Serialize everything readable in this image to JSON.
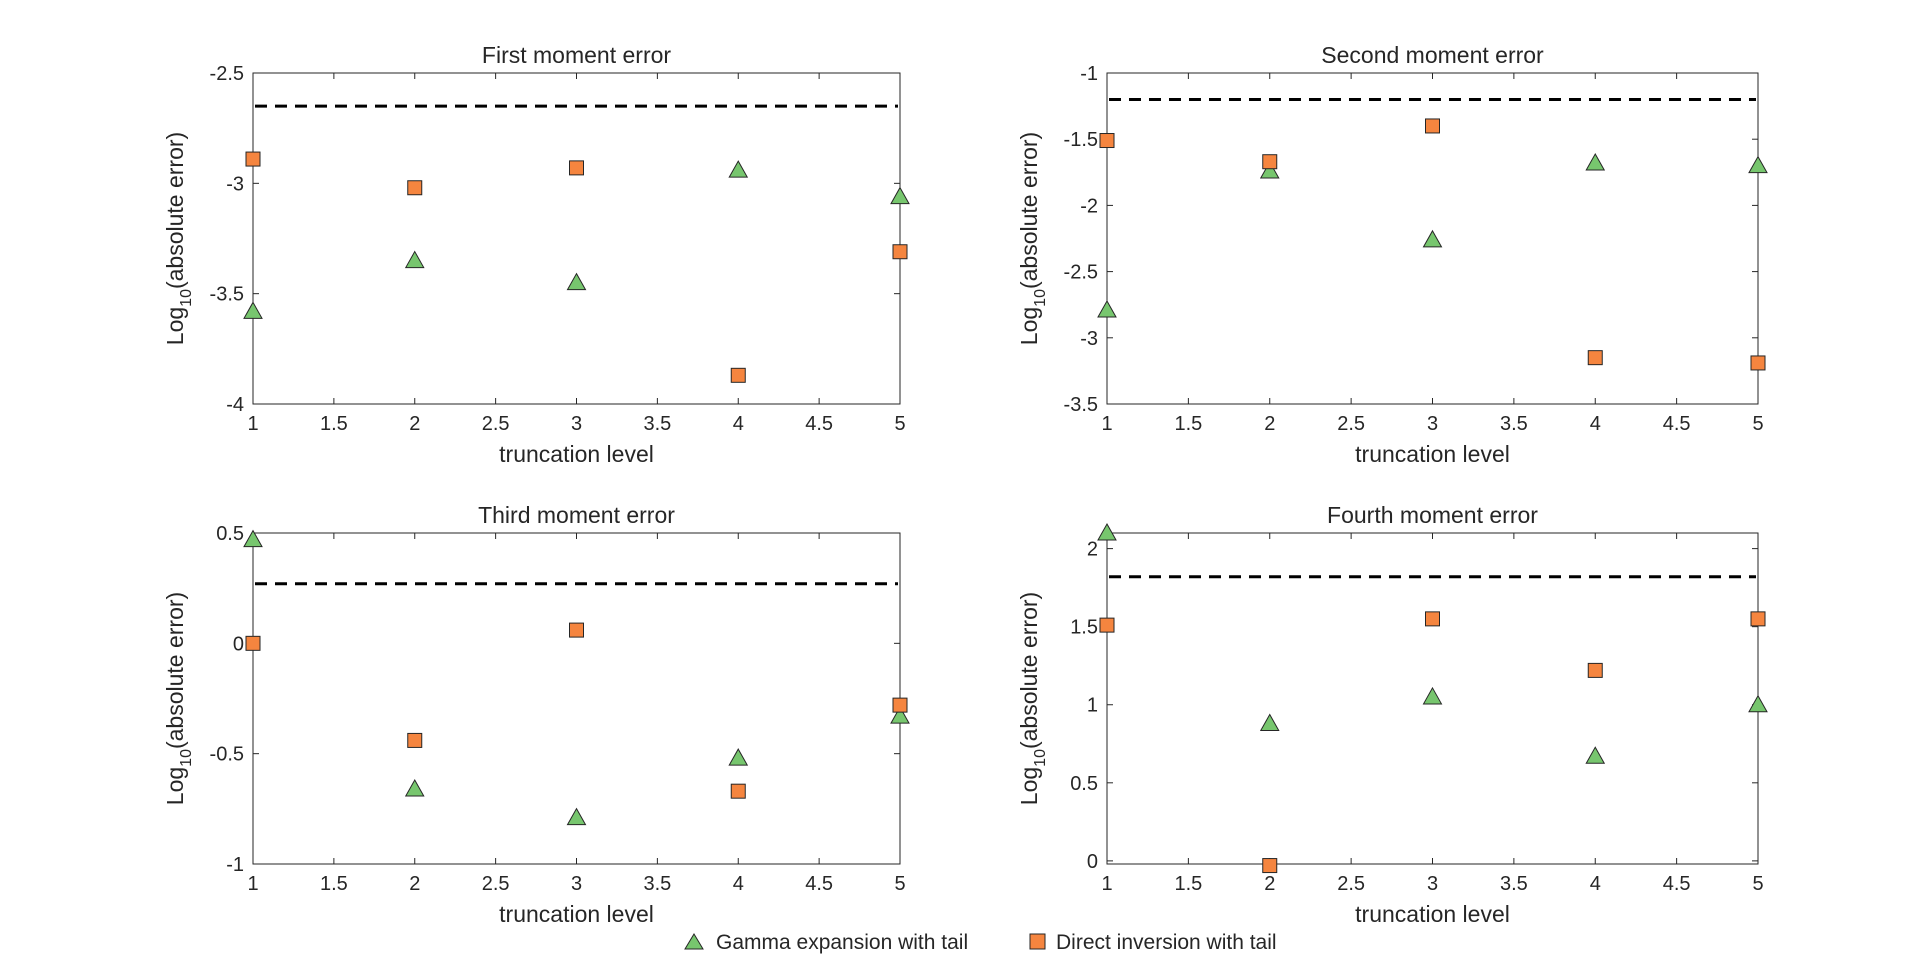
{
  "chart_data": [
    {
      "type": "scatter",
      "title": "First moment error",
      "xlabel": "truncation level",
      "ylabel_main": "Log",
      "ylabel_sub": "10",
      "ylabel_rest": "(absolute error)",
      "xlim": [
        1,
        5
      ],
      "ylim": [
        -4,
        -2.5
      ],
      "xticks": [
        "1",
        "1.5",
        "2",
        "2.5",
        "3",
        "3.5",
        "4",
        "4.5",
        "5"
      ],
      "xtick_values": [
        1,
        1.5,
        2,
        2.5,
        3,
        3.5,
        4,
        4.5,
        5
      ],
      "yticks": [
        "-4",
        "-3.5",
        "-3",
        "-2.5"
      ],
      "ytick_values": [
        -4,
        -3.5,
        -3,
        -2.5
      ],
      "reference_line": -2.65,
      "series": [
        {
          "name": "Gamma expansion with tail",
          "x": [
            1,
            2,
            3,
            4,
            5
          ],
          "values": [
            -3.58,
            -3.35,
            -3.45,
            -2.94,
            -3.06
          ]
        },
        {
          "name": "Direct inversion with tail",
          "x": [
            1,
            2,
            3,
            4,
            5
          ],
          "values": [
            -2.89,
            -3.02,
            -2.93,
            -3.87,
            -3.31
          ]
        }
      ]
    },
    {
      "type": "scatter",
      "title": "Second moment error",
      "xlabel": "truncation level",
      "ylabel_main": "Log",
      "ylabel_sub": "10",
      "ylabel_rest": "(absolute error)",
      "xlim": [
        1,
        5
      ],
      "ylim": [
        -3.5,
        -1
      ],
      "xticks": [
        "1",
        "1.5",
        "2",
        "2.5",
        "3",
        "3.5",
        "4",
        "4.5",
        "5"
      ],
      "xtick_values": [
        1,
        1.5,
        2,
        2.5,
        3,
        3.5,
        4,
        4.5,
        5
      ],
      "yticks": [
        "-3.5",
        "-3",
        "-2.5",
        "-2",
        "-1.5",
        "-1"
      ],
      "ytick_values": [
        -3.5,
        -3,
        -2.5,
        -2,
        -1.5,
        -1
      ],
      "reference_line": -1.2,
      "series": [
        {
          "name": "Gamma expansion with tail",
          "x": [
            1,
            2,
            3,
            4,
            5
          ],
          "values": [
            -2.79,
            -1.74,
            -2.26,
            -1.68,
            -1.7
          ]
        },
        {
          "name": "Direct inversion with tail",
          "x": [
            1,
            2,
            3,
            4,
            5
          ],
          "values": [
            -1.51,
            -1.67,
            -1.4,
            -3.15,
            -3.19
          ]
        }
      ]
    },
    {
      "type": "scatter",
      "title": "Third moment error",
      "xlabel": "truncation level",
      "ylabel_main": "Log",
      "ylabel_sub": "10",
      "ylabel_rest": "(absolute error)",
      "xlim": [
        1,
        5
      ],
      "ylim": [
        -1,
        0.5
      ],
      "xticks": [
        "1",
        "1.5",
        "2",
        "2.5",
        "3",
        "3.5",
        "4",
        "4.5",
        "5"
      ],
      "xtick_values": [
        1,
        1.5,
        2,
        2.5,
        3,
        3.5,
        4,
        4.5,
        5
      ],
      "yticks": [
        "-1",
        "-0.5",
        "0",
        "0.5"
      ],
      "ytick_values": [
        -1,
        -0.5,
        0,
        0.5
      ],
      "reference_line": 0.27,
      "series": [
        {
          "name": "Gamma expansion with tail",
          "x": [
            1,
            2,
            3,
            4,
            5
          ],
          "values": [
            0.47,
            -0.66,
            -0.79,
            -0.52,
            -0.33
          ]
        },
        {
          "name": "Direct inversion with tail",
          "x": [
            1,
            2,
            3,
            4,
            5
          ],
          "values": [
            0.0,
            -0.44,
            0.06,
            -0.67,
            -0.28
          ]
        }
      ]
    },
    {
      "type": "scatter",
      "title": "Fourth moment error",
      "xlabel": "truncation level",
      "ylabel_main": "Log",
      "ylabel_sub": "10",
      "ylabel_rest": "(absolute error)",
      "xlim": [
        1,
        5
      ],
      "ylim": [
        -0.02,
        2.1
      ],
      "xticks": [
        "1",
        "1.5",
        "2",
        "2.5",
        "3",
        "3.5",
        "4",
        "4.5",
        "5"
      ],
      "xtick_values": [
        1,
        1.5,
        2,
        2.5,
        3,
        3.5,
        4,
        4.5,
        5
      ],
      "yticks": [
        "0",
        "0.5",
        "1",
        "1.5",
        "2"
      ],
      "ytick_values": [
        0,
        0.5,
        1,
        1.5,
        2
      ],
      "reference_line": 1.82,
      "series": [
        {
          "name": "Gamma expansion with tail",
          "x": [
            1,
            2,
            3,
            4,
            5
          ],
          "values": [
            2.1,
            0.88,
            1.05,
            0.67,
            1.0
          ]
        },
        {
          "name": "Direct inversion with tail",
          "x": [
            1,
            2,
            3,
            4,
            5
          ],
          "values": [
            1.51,
            -0.03,
            1.55,
            1.22,
            1.55
          ]
        }
      ]
    }
  ],
  "legend": {
    "items": [
      {
        "label": "Gamma expansion with tail",
        "marker": "triangle-icon",
        "color": "#77c66e"
      },
      {
        "label": "Direct inversion with tail",
        "marker": "square-icon",
        "color": "#f5853f"
      }
    ]
  },
  "colors": {
    "gamma": "#77c66e",
    "direct": "#f5853f",
    "axis": "#262626",
    "reference": "#000000"
  }
}
